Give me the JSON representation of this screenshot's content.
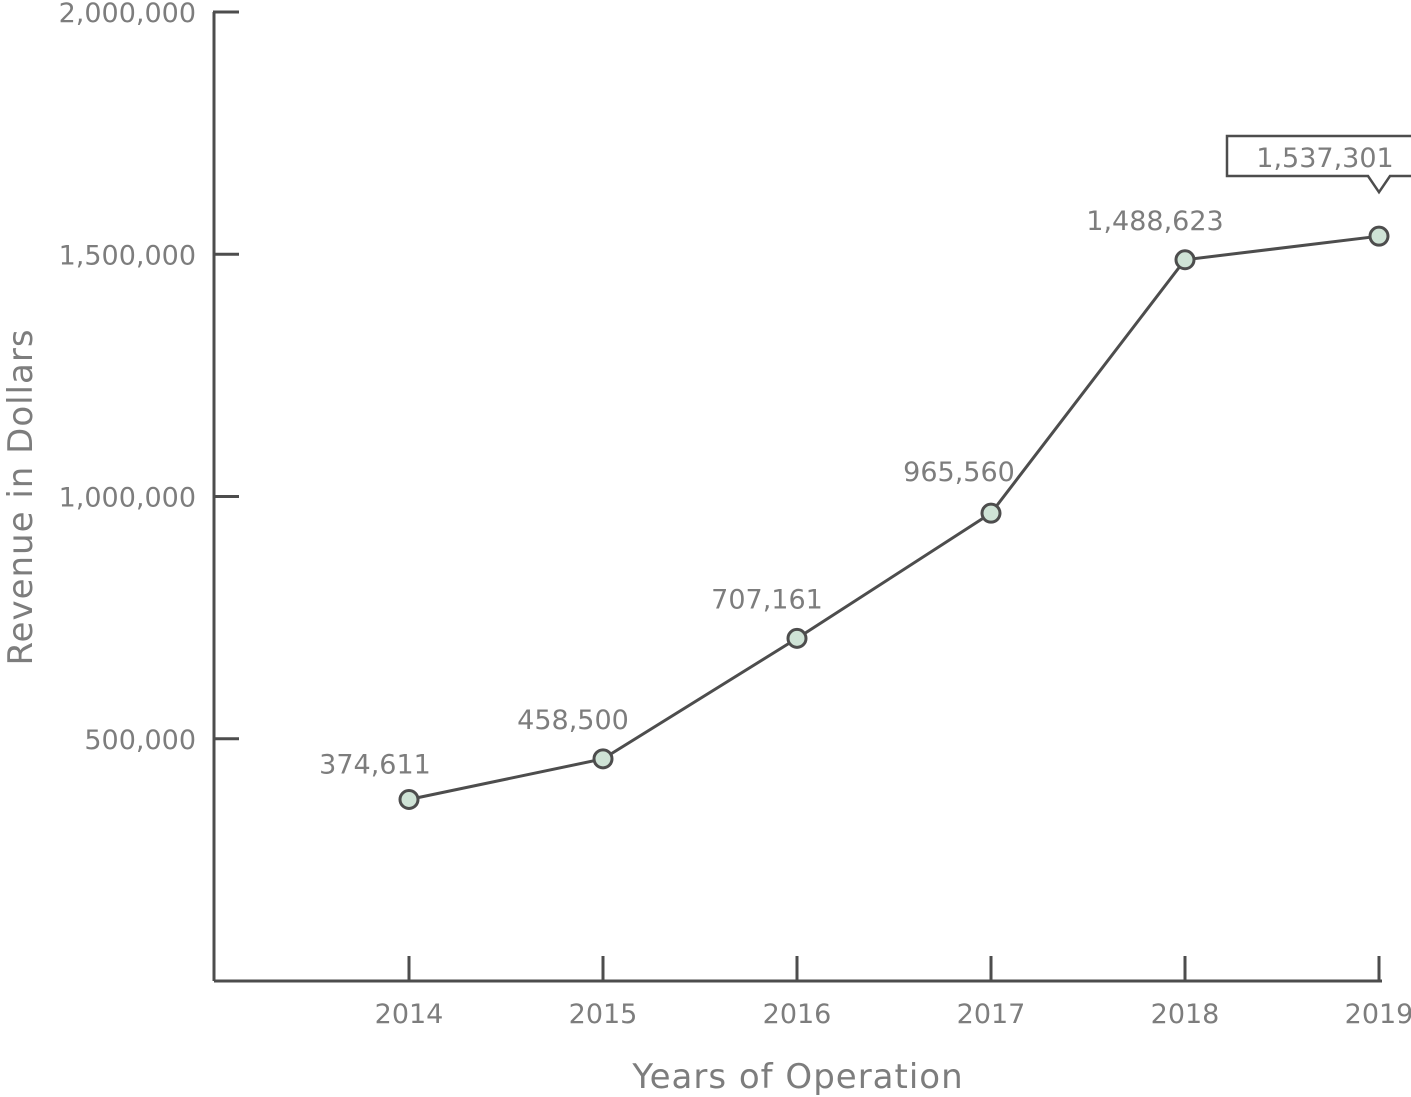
{
  "chart_data": {
    "type": "line",
    "title": "",
    "xlabel": "Years of Operation",
    "ylabel": "Revenue in Dollars",
    "categories": [
      "2014",
      "2015",
      "2016",
      "2017",
      "2018",
      "2019"
    ],
    "series": [
      {
        "values": [
          374611,
          458500,
          707161,
          965560,
          1488623,
          1537301
        ],
        "data_labels": [
          "374,611",
          "458,500",
          "707,161",
          "965,560",
          "1,488,623",
          "1,537,301"
        ]
      }
    ],
    "ylim": [
      0,
      2000000
    ],
    "yticks": [
      500000,
      1000000,
      1500000,
      2000000
    ],
    "ytick_labels": [
      "500,000",
      "1,000,000",
      "1,500,000",
      "2,000,000"
    ],
    "grid": false,
    "highlighted_point": "2019",
    "colors": {
      "line": "#4d4d4d",
      "marker_fill": "#cfe3d6",
      "text": "#7d7d7d"
    }
  }
}
